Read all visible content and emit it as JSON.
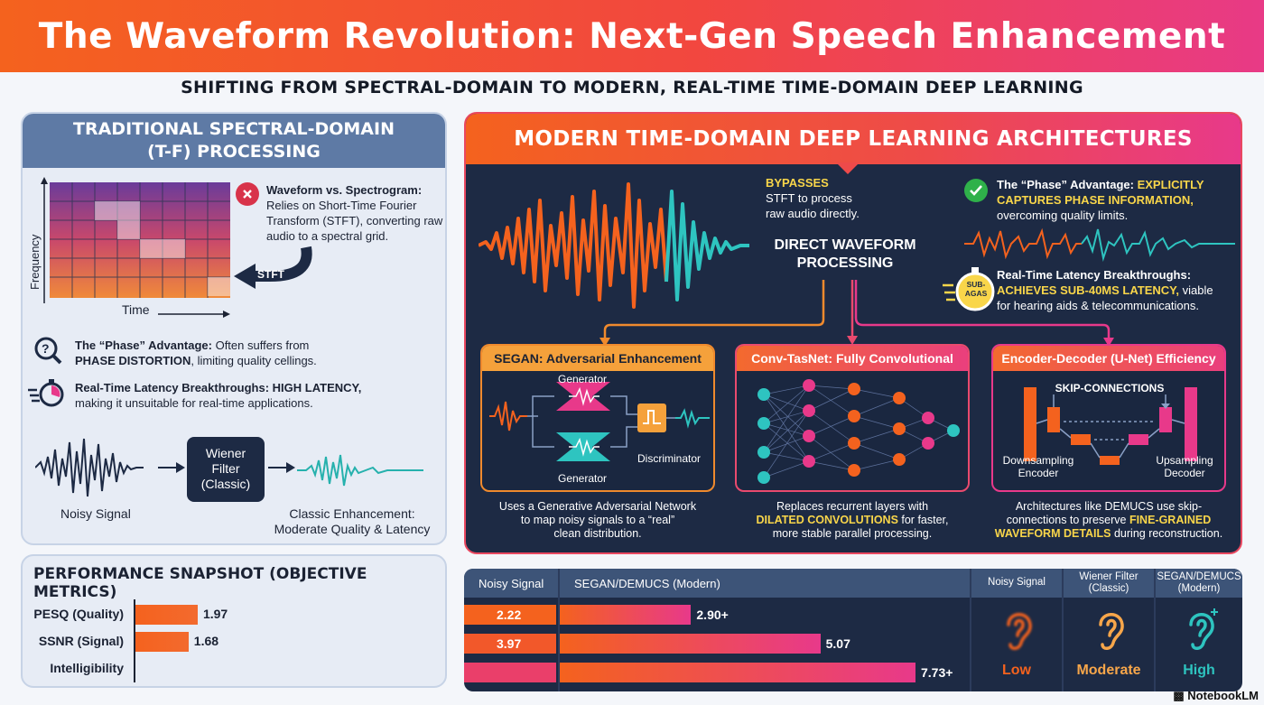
{
  "title": "The Waveform Revolution: Next-Gen Speech Enhancement",
  "subtitle": "SHIFTING FROM SPECTRAL-DOMAIN TO MODERN, REAL-TIME TIME-DOMAIN DEEP LEARNING",
  "left": {
    "heading_line1": "TRADITIONAL SPECTRAL-DOMAIN",
    "heading_line2": "(T-F) PROCESSING",
    "axis_y": "Frequency",
    "axis_x": "Time",
    "stft": "STFT",
    "waveform_vs_head": "Waveform vs. Spectrogram:",
    "waveform_vs_body": "Relies on Short-Time Fourier Transform (STFT), converting raw audio to a spectral grid.",
    "phase_head": "The “Phase” Advantage:",
    "phase_body1": "Often suffers from",
    "phase_bold": "PHASE DISTORTION",
    "phase_body2": ", limiting quality cellings.",
    "latency_head": "Real-Time Latency Breakthroughs:",
    "latency_bold": "HIGH LATENCY,",
    "latency_body": "making it unsuitable for real-time applications.",
    "noisy_signal": "Noisy Signal",
    "wiener_line1": "Wiener",
    "wiener_line2": "Filter",
    "wiener_line3": "(Classic)",
    "classic_head": "Classic Enhancement:",
    "classic_body": "Moderate Quality & Latency"
  },
  "right": {
    "heading": "MODERN TIME-DOMAIN DEEP LEARNING ARCHITECTURES",
    "bypass_bold": "BYPASSES",
    "bypass_line2": "STFT to process",
    "bypass_line3": "raw audio directly.",
    "direct_line1": "DIRECT WAVEFORM",
    "direct_line2": "PROCESSING",
    "phase_head": "The “Phase” Advantage:",
    "phase_bold1": "EXPLICITLY",
    "phase_bold2": "CAPTURES PHASE INFORMATION,",
    "phase_body": "overcoming quality limits.",
    "latency_head": "Real-Time Latency Breakthroughs:",
    "latency_bold": "ACHIEVES SUB-40MS LATENCY,",
    "latency_body1": "viable",
    "latency_body2": "for hearing aids & telecommunications.",
    "stopwatch_label_1": "SUB-",
    "stopwatch_label_2": "AGAS",
    "segan": {
      "title": "SEGAN: Adversarial Enhancement",
      "generator_top": "Generator",
      "generator_bottom": "Generator",
      "discriminator": "Discriminator",
      "desc1": "Uses a Generative Adversarial Network",
      "desc2": "to map noisy signals to a “real”",
      "desc3": "clean distribution."
    },
    "convtasnet": {
      "title": "Conv-TasNet: Fully Convolutional",
      "desc1": "Replaces recurrent layers with",
      "desc_bold": "DILATED CONVOLUTIONS",
      "desc2": " for faster,",
      "desc3": "more stable parallel processing."
    },
    "unet": {
      "title": "Encoder-Decoder (U-Net) Efficiency",
      "skip": "SKIP-CONNECTIONS",
      "down1": "Downsampling",
      "down2": "Encoder",
      "up1": "Upsampling",
      "up2": "Decoder",
      "desc1": "Architectures like DEMUCS use skip-",
      "desc2": "connections to preserve ",
      "desc_bold1": "FINE-GRAINED",
      "desc_bold2": "WAVEFORM DETAILS",
      "desc3": " during reconstruction."
    }
  },
  "perf": {
    "title": "PERFORMANCE SNAPSHOT (OBJECTIVE METRICS)",
    "rows": [
      {
        "label": "PESQ (Quality)",
        "value": "1.97",
        "num": 1.97
      },
      {
        "label": "SSNR (Signal)",
        "value": "1.68",
        "num": 1.68
      },
      {
        "label": "Intelligibility",
        "value": "",
        "num": 0
      }
    ]
  },
  "compare": {
    "col1": "Noisy Signal",
    "col2": "SEGAN/DEMUCS (Modern)",
    "rows": [
      {
        "noisy": "2.22",
        "modern": "2.90+",
        "noisy_num": 2.22,
        "modern_num": 2.9
      },
      {
        "noisy": "3.97",
        "modern": "5.07",
        "noisy_num": 3.97,
        "modern_num": 5.07
      },
      {
        "noisy": "",
        "modern": "7.73+",
        "noisy_num": 0,
        "modern_num": 7.73
      }
    ],
    "quality": [
      {
        "head1": "Noisy Signal",
        "head2": "",
        "label": "Low",
        "color": "#f4621e"
      },
      {
        "head1": "Wiener Filter",
        "head2": "(Classic)",
        "label": "Moderate",
        "color": "#f7a64a"
      },
      {
        "head1": "SEGAN/DEMUCS",
        "head2": "(Modern)",
        "label": "High",
        "color": "#2ec4c0"
      }
    ]
  },
  "brand": "NotebookLM",
  "colors": {
    "orange": "#f4621e",
    "pink": "#e83a86",
    "teal": "#2ec4c0",
    "navy": "#1d2a44",
    "yellow": "#f9d64a"
  }
}
